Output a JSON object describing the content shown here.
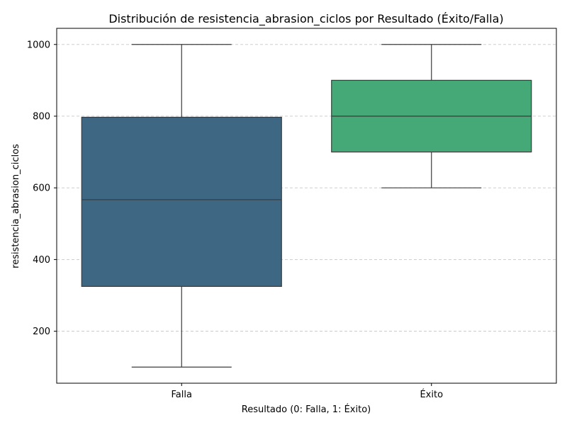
{
  "chart_data": {
    "type": "boxplot",
    "title": "Distribución de resistencia_abrasion_ciclos por Resultado (Éxito/Falla)",
    "xlabel": "Resultado (0: Falla, 1: Éxito)",
    "ylabel": "resistencia_abrasion_ciclos",
    "ylim": [
      55,
      1045
    ],
    "yticks": [
      200,
      400,
      600,
      800,
      1000
    ],
    "grid": "y-dashed",
    "categories": [
      "Falla",
      "Éxito"
    ],
    "boxes": [
      {
        "name": "Falla",
        "whisker_low": 100,
        "q1": 325,
        "median": 567,
        "q3": 797,
        "whisker_high": 1000,
        "color": "#3e6784"
      },
      {
        "name": "Éxito",
        "whisker_low": 600,
        "q1": 700,
        "median": 800,
        "q3": 900,
        "whisker_high": 1000,
        "color": "#44a977"
      }
    ],
    "colors": {
      "line": "#3b3b3b",
      "grid": "#c8c8c8",
      "axis": "#000000"
    }
  }
}
